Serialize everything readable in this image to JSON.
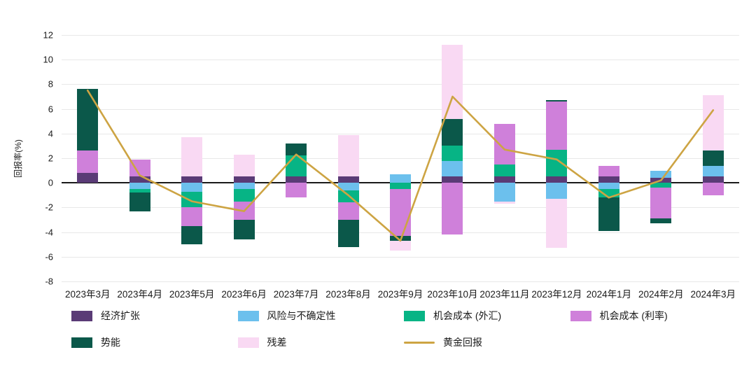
{
  "chart_data": {
    "type": "bar",
    "stacked": true,
    "title": "",
    "ylabel": "回报率(%)",
    "ylim": [
      -8,
      12
    ],
    "ytick_step": 2,
    "grid": true,
    "legend_position": "bottom",
    "categories": [
      "2023年3月",
      "2023年4月",
      "2023年5月",
      "2023年6月",
      "2023年7月",
      "2023年8月",
      "2023年9月",
      "2023年10月",
      "2023年11月",
      "2023年12月",
      "2024年1月",
      "2024年2月",
      "2024年3月"
    ],
    "series": [
      {
        "name": "经济扩张",
        "color": "#5a3b76",
        "values": [
          0.8,
          0.5,
          0.5,
          0.5,
          0.5,
          0.5,
          0.0,
          0.5,
          0.5,
          0.5,
          0.5,
          0.4,
          0.5
        ]
      },
      {
        "name": "风险与不确定性",
        "color": "#6cc0ed",
        "values": [
          0.0,
          -0.5,
          -0.7,
          -0.5,
          0.0,
          -0.6,
          0.7,
          1.3,
          -1.5,
          -1.3,
          -0.5,
          0.6,
          0.9
        ]
      },
      {
        "name": "机会成本 (外汇)",
        "color": "#07b485",
        "values": [
          0.0,
          -0.3,
          -1.3,
          -1.0,
          1.7,
          -1.0,
          -0.5,
          1.2,
          1.0,
          2.2,
          -0.7,
          -0.4,
          0.0
        ]
      },
      {
        "name": "机会成本 (利率)",
        "color": "#cf80da",
        "values": [
          1.8,
          1.4,
          -1.5,
          -1.5,
          -1.2,
          -1.4,
          -3.8,
          -4.2,
          3.3,
          3.9,
          0.9,
          -2.5,
          -1.0
        ]
      },
      {
        "name": "势能",
        "color": "#0b584a",
        "values": [
          5.0,
          -1.5,
          -1.5,
          -1.6,
          1.0,
          -2.2,
          -0.4,
          2.2,
          0.0,
          0.1,
          -2.7,
          -0.4,
          1.2
        ]
      },
      {
        "name": "残差",
        "color": "#f9d9f3",
        "values": [
          0.0,
          0.0,
          3.2,
          1.8,
          0.0,
          3.4,
          -0.8,
          6.0,
          -0.2,
          -4.0,
          0.0,
          0.0,
          4.5
        ]
      }
    ],
    "line_series": {
      "name": "黄金回报",
      "color": "#cda443",
      "values": [
        7.5,
        0.6,
        -1.5,
        -2.3,
        2.3,
        -1.0,
        -4.7,
        7.0,
        2.7,
        1.9,
        -1.2,
        0.2,
        5.9
      ]
    }
  }
}
